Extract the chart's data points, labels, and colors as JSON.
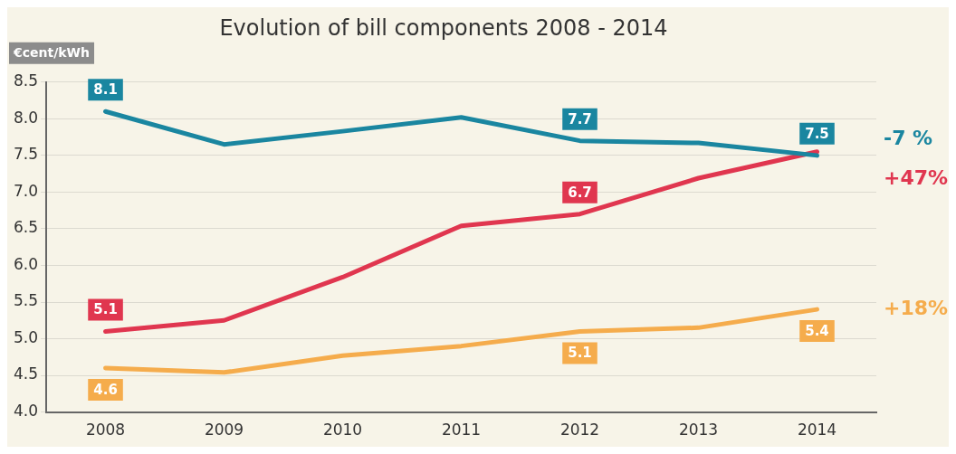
{
  "chart_data": {
    "type": "line",
    "title": "Evolution of bill components 2008 - 2014",
    "ylabel": "€cent/kWh",
    "categories": [
      "2008",
      "2009",
      "2010",
      "2011",
      "2012",
      "2013",
      "2014"
    ],
    "series": [
      {
        "color": "#1a86a0",
        "values": [
          8.1,
          7.65,
          7.83,
          8.02,
          7.7,
          7.67,
          7.5
        ],
        "value_labels": [
          "8.1",
          null,
          null,
          null,
          "7.7",
          null,
          "7.5"
        ]
      },
      {
        "color": "#e0364f",
        "values": [
          5.1,
          5.25,
          5.84,
          6.54,
          6.7,
          7.19,
          7.55
        ],
        "value_labels": [
          "5.1",
          null,
          null,
          null,
          "6.7",
          null,
          null
        ]
      },
      {
        "color": "#f5ac4c",
        "values": [
          4.6,
          4.54,
          4.77,
          4.9,
          5.1,
          5.15,
          5.4
        ],
        "value_labels": [
          "4.6",
          null,
          null,
          null,
          "5.1",
          null,
          "5.4"
        ]
      }
    ],
    "annotations": [
      "-7 %",
      "+47%",
      "+18%"
    ],
    "ylim": [
      4,
      8.5
    ],
    "yticks": [
      {
        "value": 4,
        "label": "4.0"
      },
      4.5,
      {
        "value": 5,
        "label": "5.0"
      },
      5.5,
      {
        "value": 6,
        "label": "6.0"
      },
      6.5,
      {
        "value": 7,
        "label": "7.0"
      },
      7.5,
      {
        "value": 8,
        "label": "8.0"
      },
      8.5
    ],
    "grid": "y",
    "legend": false,
    "marker": "none",
    "line_style": "solid"
  }
}
